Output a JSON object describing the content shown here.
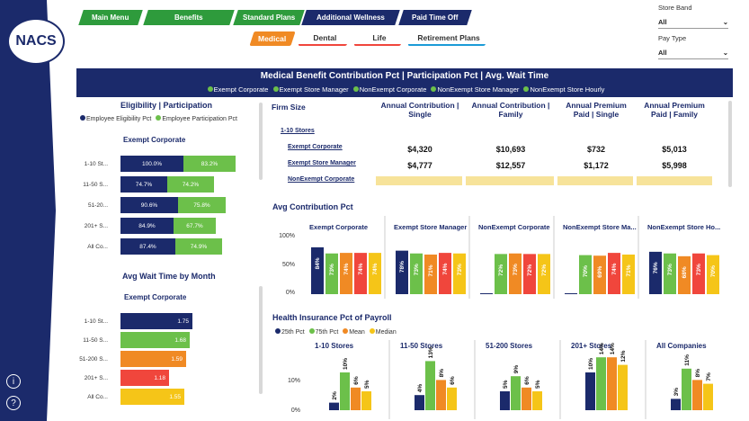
{
  "nav": {
    "tabs": [
      {
        "label": "Main Menu",
        "color": "#2e9b3c"
      },
      {
        "label": "Benefits",
        "color": "#2e9b3c"
      },
      {
        "label": "Standard Plans",
        "color": "#2e9b3c"
      },
      {
        "label": "Additional Wellness",
        "color": "#1b2a6b"
      },
      {
        "label": "Paid Time Off",
        "color": "#1b2a6b"
      }
    ],
    "subtabs": [
      {
        "label": "Medical",
        "active": true
      },
      {
        "label": "Dental"
      },
      {
        "label": "Life"
      },
      {
        "label": "Retirement Plans"
      }
    ]
  },
  "logo": {
    "text": "NACS"
  },
  "slicers": {
    "store_band": {
      "label": "Store Band",
      "value": "All"
    },
    "pay_type": {
      "label": "Pay Type",
      "value": "All"
    }
  },
  "banner": {
    "title": "Medical Benefit Contribution Pct | Participation Pct | Avg. Wait Time",
    "legend": [
      "Exempt Corporate",
      "Exempt Store Manager",
      "NonExempt Corporate",
      "NonExempt Store Manager",
      "NonExempt Store Hourly"
    ]
  },
  "eligibility": {
    "title": "Eligibility | Participation",
    "legend": [
      "Employee Eligibility Pct",
      "Employee Participation Pct"
    ],
    "group": "Exempt Corporate",
    "rows": [
      {
        "cat": "1-10 St...",
        "elig": "100.0%",
        "part": "83.2%"
      },
      {
        "cat": "11-50 S...",
        "elig": "74.7%",
        "part": "74.2%"
      },
      {
        "cat": "51-20...",
        "elig": "90.6%",
        "part": "75.8%"
      },
      {
        "cat": "201+ S...",
        "elig": "84.9%",
        "part": "67.7%"
      },
      {
        "cat": "All Co...",
        "elig": "87.4%",
        "part": "74.9%"
      }
    ]
  },
  "wait": {
    "title": "Avg Wait Time by Month",
    "group": "Exempt Corporate",
    "rows": [
      {
        "cat": "1-10 St...",
        "value": "1.75",
        "color": "#1b2a6b"
      },
      {
        "cat": "11-50 S...",
        "value": "1.68",
        "color": "#6cc04a"
      },
      {
        "cat": "51-200 S...",
        "value": "1.59",
        "color": "#f08a24"
      },
      {
        "cat": "201+ S...",
        "value": "1.18",
        "color": "#f0463c"
      },
      {
        "cat": "All Co...",
        "value": "1.55",
        "color": "#f5c518"
      }
    ]
  },
  "table": {
    "headers": [
      "Firm Size",
      "Annual Contribution | Single",
      "Annual Contribution | Family",
      "Annual Premium Paid | Single",
      "Annual Premium Paid | Family"
    ],
    "group_label": "1-10 Stores",
    "rows": [
      {
        "name": "Exempt Corporate",
        "vals": [
          "$4,320",
          "$10,693",
          "$732",
          "$5,013"
        ]
      },
      {
        "name": "Exempt Store Manager",
        "vals": [
          "$4,777",
          "$12,557",
          "$1,172",
          "$5,998"
        ]
      },
      {
        "name": "NonExempt Corporate",
        "vals": [
          "",
          "",
          "",
          ""
        ]
      }
    ]
  },
  "contribution": {
    "title": "Avg Contribution Pct",
    "axis": [
      "100%",
      "50%",
      "0%"
    ],
    "panels": [
      {
        "name": "Exempt Corporate",
        "labels": [
          "84%",
          "73%",
          "74%",
          "74%",
          "74%"
        ]
      },
      {
        "name": "Exempt Store Manager",
        "labels": [
          "78%",
          "73%",
          "71%",
          "74%",
          "73%"
        ]
      },
      {
        "name": "NonExempt Corporate",
        "labels": [
          "",
          "72%",
          "73%",
          "72%",
          "72%"
        ]
      },
      {
        "name": "NonExempt Store Ma...",
        "labels": [
          "",
          "70%",
          "69%",
          "74%",
          "71%"
        ]
      },
      {
        "name": "NonExempt Store Ho...",
        "labels": [
          "76%",
          "73%",
          "68%",
          "73%",
          "70%"
        ]
      }
    ]
  },
  "payroll": {
    "title": "Health Insurance Pct of Payroll",
    "legend": [
      "25th Pct",
      "75th Pct",
      "Mean",
      "Median"
    ],
    "axis": [
      "10%",
      "0%"
    ],
    "panels": [
      {
        "name": "1-10 Stores",
        "labels": [
          "2%",
          "10%",
          "6%",
          "5%"
        ]
      },
      {
        "name": "11-50 Stores",
        "labels": [
          "4%",
          "13%",
          "8%",
          "6%"
        ]
      },
      {
        "name": "51-200 Stores",
        "labels": [
          "5%",
          "9%",
          "6%",
          "5%"
        ]
      },
      {
        "name": "201+ Stores",
        "labels": [
          "10%",
          "14%",
          "14%",
          "12%"
        ]
      },
      {
        "name": "All Companies",
        "labels": [
          "3%",
          "11%",
          "8%",
          "7%"
        ]
      }
    ]
  },
  "colors": {
    "navy": "#1b2a6b",
    "green": "#6cc04a",
    "orange": "#f08a24",
    "red": "#f0463c",
    "yellow": "#f5c518",
    "pale": "#f7e39a"
  }
}
